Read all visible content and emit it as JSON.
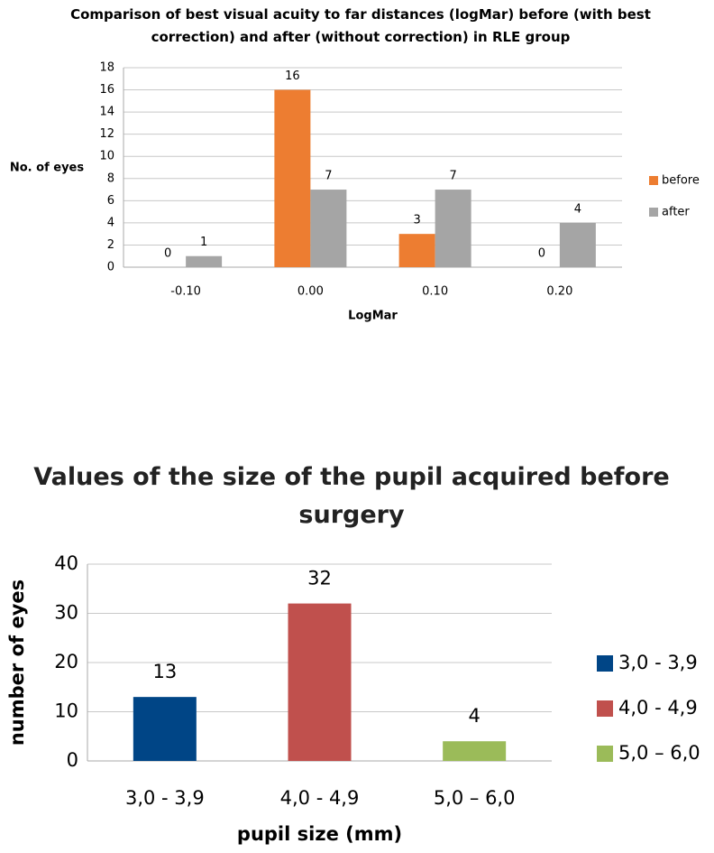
{
  "chart_data": [
    {
      "type": "bar",
      "title": "Comparison of best visual acuity to far distances (logMar) before (with best correction) and after (without correction) in RLE group",
      "x_label": "LogMar",
      "y_label": "No. of eyes",
      "categories": [
        "-0.10",
        "0.00",
        "0.10",
        "0.20"
      ],
      "series": [
        {
          "name": "before",
          "color": "#ed7d31",
          "values": [
            0,
            16,
            3,
            0
          ]
        },
        {
          "name": "after",
          "color": "#a5a5a5",
          "values": [
            1,
            7,
            7,
            4
          ]
        }
      ],
      "ylim": [
        0,
        18
      ],
      "yticks": [
        0,
        2,
        4,
        6,
        8,
        10,
        12,
        14,
        16,
        18
      ],
      "grid": true
    },
    {
      "type": "bar",
      "title": "Values of the size of the pupil acquired before surgery",
      "x_label": "pupil size (mm)",
      "y_label": "number of eyes",
      "categories": [
        "3,0 - 3,9",
        "4,0 - 4,9",
        "5,0 – 6,0"
      ],
      "values": [
        13,
        32,
        4
      ],
      "colors": [
        "#004586",
        "#c0504d",
        "#9bbb59"
      ],
      "ylim": [
        0,
        40
      ],
      "yticks": [
        0,
        10,
        20,
        30,
        40
      ],
      "grid": true
    }
  ]
}
